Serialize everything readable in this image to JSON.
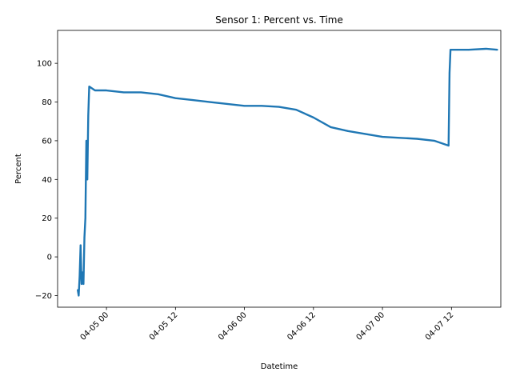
{
  "chart_data": {
    "type": "line",
    "title": "Sensor 1: Percent vs. Time",
    "xlabel": "Datetime",
    "ylabel": "Percent",
    "x_axis_type": "datetime",
    "xlim": [
      "2024-04-04 15:30",
      "2024-04-07 20:35"
    ],
    "ylim": [
      -26,
      117
    ],
    "grid": false,
    "legend": "none",
    "xticks": [
      {
        "value": "2024-04-05 00:00",
        "label": "04-05 00"
      },
      {
        "value": "2024-04-05 12:00",
        "label": "04-05 12"
      },
      {
        "value": "2024-04-06 00:00",
        "label": "04-06 00"
      },
      {
        "value": "2024-04-06 12:00",
        "label": "04-06 12"
      },
      {
        "value": "2024-04-07 00:00",
        "label": "04-07 00"
      },
      {
        "value": "2024-04-07 12:00",
        "label": "04-07 12"
      }
    ],
    "yticks": [
      {
        "value": -20,
        "label": "−20"
      },
      {
        "value": 0,
        "label": "0"
      },
      {
        "value": 20,
        "label": "20"
      },
      {
        "value": 40,
        "label": "40"
      },
      {
        "value": 60,
        "label": "60"
      },
      {
        "value": 80,
        "label": "80"
      },
      {
        "value": 100,
        "label": "100"
      }
    ],
    "series": [
      {
        "color": "#1f77b4",
        "points": [
          [
            "2024-04-04 19:00",
            -17
          ],
          [
            "2024-04-04 19:10",
            -20
          ],
          [
            "2024-04-04 19:20",
            -10
          ],
          [
            "2024-04-04 19:30",
            6
          ],
          [
            "2024-04-04 19:40",
            -14
          ],
          [
            "2024-04-04 19:50",
            -8
          ],
          [
            "2024-04-04 20:00",
            -14
          ],
          [
            "2024-04-04 20:10",
            10
          ],
          [
            "2024-04-04 20:20",
            20
          ],
          [
            "2024-04-04 20:30",
            60
          ],
          [
            "2024-04-04 20:40",
            40
          ],
          [
            "2024-04-04 20:50",
            73
          ],
          [
            "2024-04-04 21:00",
            88
          ],
          [
            "2024-04-04 22:00",
            86
          ],
          [
            "2024-04-05 00:00",
            86
          ],
          [
            "2024-04-05 03:00",
            85
          ],
          [
            "2024-04-05 06:00",
            85
          ],
          [
            "2024-04-05 09:00",
            84
          ],
          [
            "2024-04-05 12:00",
            82
          ],
          [
            "2024-04-05 15:00",
            81
          ],
          [
            "2024-04-05 18:00",
            80
          ],
          [
            "2024-04-05 21:00",
            79
          ],
          [
            "2024-04-06 00:00",
            78
          ],
          [
            "2024-04-06 03:00",
            78
          ],
          [
            "2024-04-06 06:00",
            77.5
          ],
          [
            "2024-04-06 09:00",
            76
          ],
          [
            "2024-04-06 12:00",
            72
          ],
          [
            "2024-04-06 15:00",
            67
          ],
          [
            "2024-04-06 18:00",
            65
          ],
          [
            "2024-04-06 21:00",
            63.5
          ],
          [
            "2024-04-07 00:00",
            62
          ],
          [
            "2024-04-07 03:00",
            61.5
          ],
          [
            "2024-04-07 06:00",
            61
          ],
          [
            "2024-04-07 09:00",
            60
          ],
          [
            "2024-04-07 11:30",
            57.5
          ],
          [
            "2024-04-07 11:40",
            95
          ],
          [
            "2024-04-07 11:50",
            107
          ],
          [
            "2024-04-07 13:00",
            107
          ],
          [
            "2024-04-07 15:00",
            107
          ],
          [
            "2024-04-07 18:00",
            107.5
          ],
          [
            "2024-04-07 20:00",
            107
          ]
        ]
      }
    ]
  }
}
